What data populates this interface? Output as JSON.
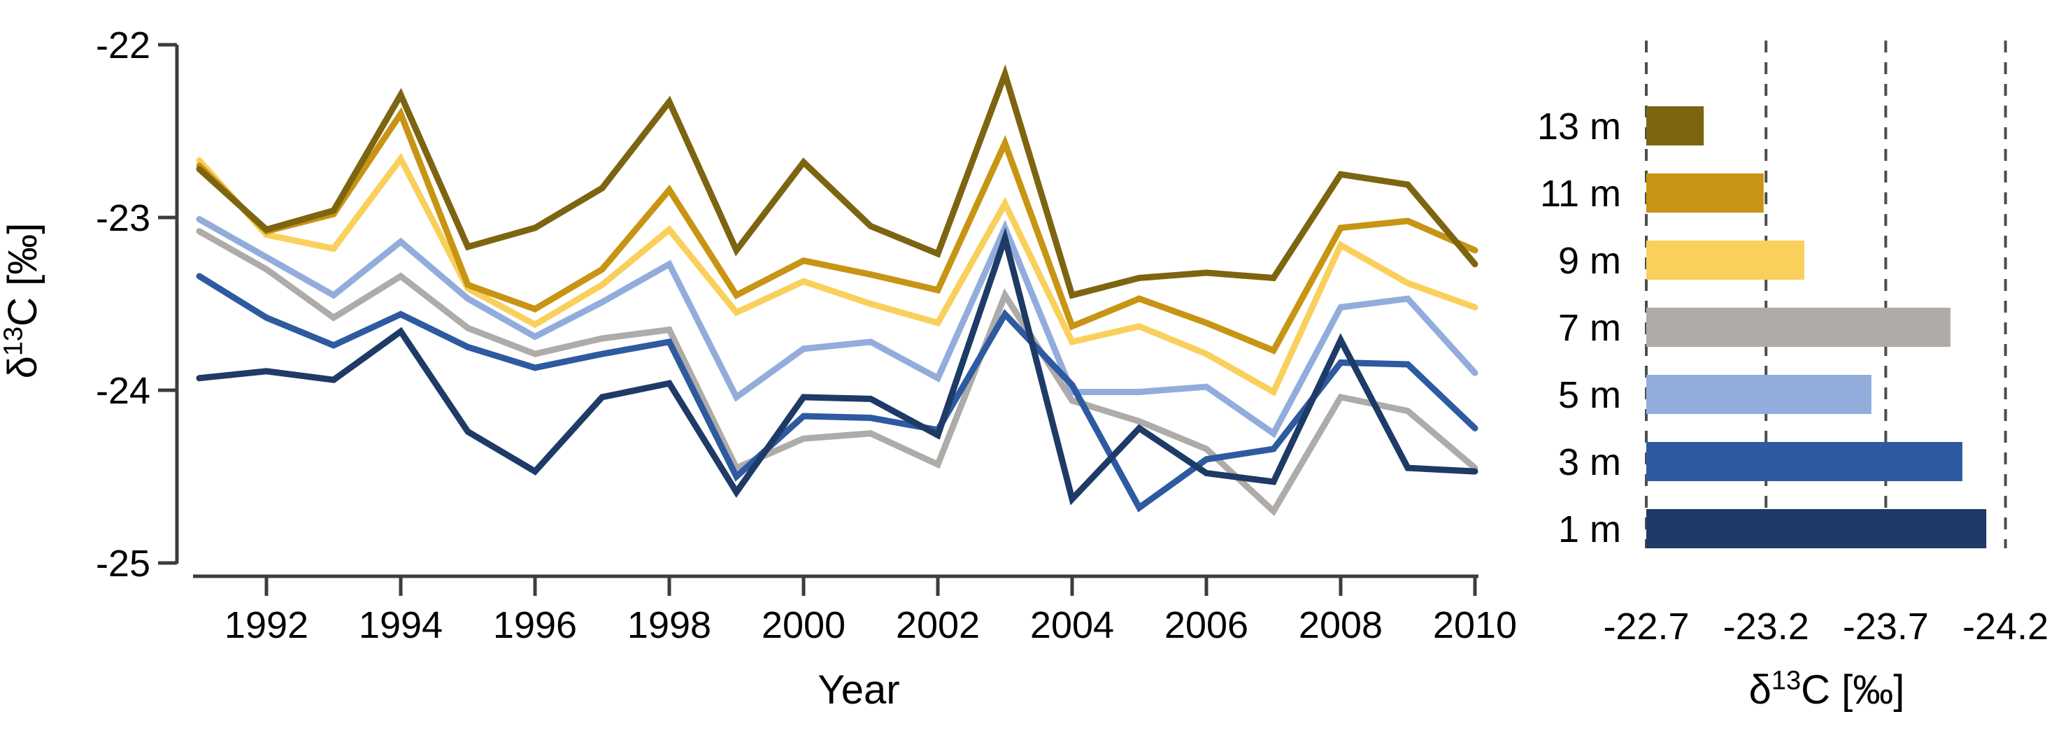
{
  "figure": {
    "background": "#ffffff",
    "axis_color": "#3c3c3c",
    "grid_color": "#4d4d4d",
    "text_color": "#000000"
  },
  "chart_data": [
    {
      "type": "line",
      "title": "",
      "xlabel": "Year",
      "ylabel": {
        "pre": "δ",
        "sup": "13",
        "post": "C [‰]"
      },
      "ylabel_text": "δ13C [‰]",
      "x": [
        1991,
        1992,
        1993,
        1994,
        1995,
        1996,
        1997,
        1998,
        1999,
        2000,
        2001,
        2002,
        2003,
        2004,
        2005,
        2006,
        2007,
        2008,
        2009,
        2010
      ],
      "xticks": [
        1992,
        1994,
        1996,
        1998,
        2000,
        2002,
        2004,
        2006,
        2008,
        2010
      ],
      "yticks": [
        -22,
        -23,
        -24,
        -25
      ],
      "xlim": [
        1991,
        2010
      ],
      "ylim": [
        -25.1,
        -21.95
      ],
      "grid": "off",
      "legend": "none",
      "line_width": 9,
      "series": [
        {
          "name": "13 m",
          "color": "#7d6410",
          "values": [
            -22.72,
            -23.07,
            -22.96,
            -22.29,
            -23.17,
            -23.06,
            -22.83,
            -22.33,
            -23.19,
            -22.68,
            -23.05,
            -23.21,
            -22.17,
            -23.45,
            -23.35,
            -23.32,
            -23.35,
            -22.75,
            -22.81,
            -23.27
          ]
        },
        {
          "name": "11 m",
          "color": "#c79413",
          "values": [
            -22.7,
            -23.08,
            -22.98,
            -22.4,
            -23.39,
            -23.53,
            -23.3,
            -22.84,
            -23.45,
            -23.25,
            -23.33,
            -23.42,
            -22.57,
            -23.63,
            -23.47,
            -23.61,
            -23.77,
            -23.06,
            -23.02,
            -23.19
          ]
        },
        {
          "name": "9 m",
          "color": "#f9d05c",
          "values": [
            -22.67,
            -23.1,
            -23.18,
            -22.66,
            -23.41,
            -23.62,
            -23.39,
            -23.07,
            -23.55,
            -23.37,
            -23.5,
            -23.61,
            -22.92,
            -23.72,
            -23.63,
            -23.79,
            -24.01,
            -23.16,
            -23.38,
            -23.52
          ]
        },
        {
          "name": "7 m",
          "color": "#aeaba8",
          "values": [
            -23.08,
            -23.3,
            -23.58,
            -23.34,
            -23.64,
            -23.79,
            -23.7,
            -23.65,
            -24.45,
            -24.28,
            -24.25,
            -24.43,
            -23.45,
            -24.06,
            -24.18,
            -24.34,
            -24.7,
            -24.04,
            -24.12,
            -24.45
          ]
        },
        {
          "name": "5 m",
          "color": "#92addc",
          "values": [
            -23.01,
            -23.23,
            -23.45,
            -23.14,
            -23.47,
            -23.69,
            -23.49,
            -23.27,
            -24.04,
            -23.76,
            -23.72,
            -23.93,
            -23.06,
            -24.01,
            -24.01,
            -23.98,
            -24.25,
            -23.52,
            -23.47,
            -23.9
          ]
        },
        {
          "name": "3 m",
          "color": "#2d5aa0",
          "values": [
            -23.34,
            -23.58,
            -23.74,
            -23.56,
            -23.75,
            -23.87,
            -23.79,
            -23.72,
            -24.5,
            -24.15,
            -24.16,
            -24.23,
            -23.56,
            -23.97,
            -24.68,
            -24.4,
            -24.34,
            -23.84,
            -23.85,
            -24.22
          ]
        },
        {
          "name": "1 m",
          "color": "#1e3a66",
          "values": [
            -23.93,
            -23.89,
            -23.94,
            -23.66,
            -24.24,
            -24.47,
            -24.04,
            -23.96,
            -24.59,
            -24.04,
            -24.05,
            -24.26,
            -23.12,
            -24.63,
            -24.22,
            -24.48,
            -24.53,
            -23.71,
            -24.45,
            -24.47
          ]
        }
      ],
      "draw_order": [
        3,
        4,
        2,
        1,
        0,
        5,
        6
      ]
    },
    {
      "type": "bar",
      "orientation": "horizontal",
      "categories": [
        "13 m",
        "11 m",
        "9 m",
        "7 m",
        "5 m",
        "3 m",
        "1 m"
      ],
      "values": [
        -22.94,
        -23.19,
        -23.36,
        -23.97,
        -23.64,
        -24.02,
        -24.12
      ],
      "colors": [
        "#7d6410",
        "#c79413",
        "#f9d05c",
        "#aeaba8",
        "#92addc",
        "#2d5aa0",
        "#1e3a66"
      ],
      "bar_base": -22.7,
      "xticks": [
        -22.7,
        -23.2,
        -23.7,
        -24.2
      ],
      "xtick_labels": [
        "-22.7",
        "-23.2",
        "-23.7",
        "-24.2"
      ],
      "xlim": [
        -22.7,
        -24.2
      ],
      "grid": "dashed-vertical",
      "xlabel": {
        "pre": "δ",
        "sup": "13",
        "post": "C [‰]"
      },
      "xlabel_text": "δ13C [‰]"
    }
  ]
}
